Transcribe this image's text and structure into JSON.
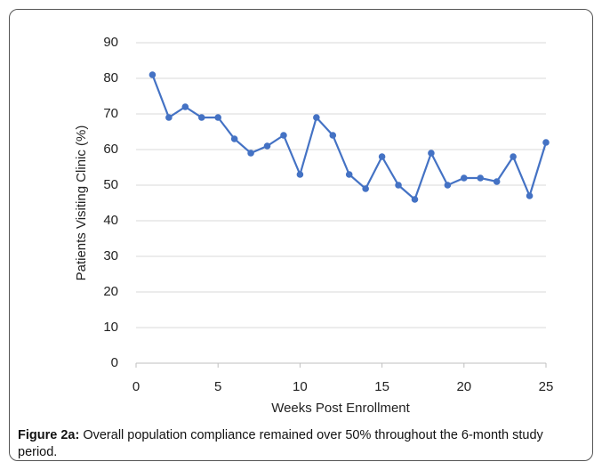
{
  "chart_data": {
    "type": "line",
    "x": [
      1,
      2,
      3,
      4,
      5,
      6,
      7,
      8,
      9,
      10,
      11,
      12,
      13,
      14,
      15,
      16,
      17,
      18,
      19,
      20,
      21,
      22,
      23,
      24,
      25
    ],
    "values": [
      81,
      69,
      72,
      69,
      69,
      63,
      59,
      61,
      64,
      53,
      69,
      64,
      53,
      49,
      58,
      50,
      46,
      59,
      50,
      52,
      52,
      51,
      58,
      47,
      62
    ],
    "color": "#4472c4",
    "xlabel": "Weeks Post Enrollment",
    "ylabel": "Patients Visiting Clinic (%)",
    "xlim": [
      0,
      25
    ],
    "xticks": [
      0,
      5,
      10,
      15,
      20,
      25
    ],
    "ylim": [
      0,
      90
    ],
    "yticks": [
      0,
      10,
      20,
      30,
      40,
      50,
      60,
      70,
      80,
      90
    ],
    "grid": true
  },
  "caption": {
    "label": "Figure 2a:",
    "text": "Overall population compliance remained over 50% throughout the 6-month study period."
  }
}
